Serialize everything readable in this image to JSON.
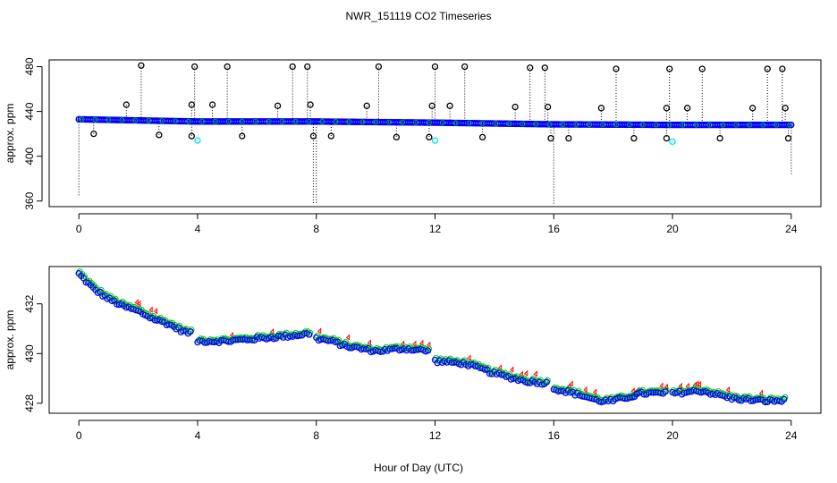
{
  "figure": {
    "title": "NWR_151119  CO2 Timeseries",
    "xlabel": "Hour of Day (UTC)"
  },
  "chart_data": [
    {
      "type": "scatter",
      "panel": "top",
      "ylabel": "approx. ppm",
      "xlim": [
        -1,
        25
      ],
      "ylim": [
        355,
        486
      ],
      "xticks": [
        0,
        4,
        8,
        12,
        16,
        20,
        24
      ],
      "yticks": [
        360,
        400,
        440,
        480
      ],
      "grid": false,
      "colors": {
        "baseline": "#0000ff",
        "spike_marker": "#000000",
        "cyan_marker": "#00e5e5",
        "green_marker": "#00cc00",
        "drop_line": "#000000"
      },
      "baseline": {
        "description_points": [
          [
            0,
            433
          ],
          [
            4,
            431
          ],
          [
            8,
            431
          ],
          [
            12,
            430
          ],
          [
            16,
            428.5
          ],
          [
            20,
            428
          ],
          [
            24,
            428
          ]
        ]
      },
      "spikes_high": [
        [
          1.6,
          446
        ],
        [
          2.1,
          481
        ],
        [
          3.8,
          446
        ],
        [
          3.9,
          480
        ],
        [
          4.5,
          446
        ],
        [
          5.0,
          480
        ],
        [
          6.7,
          445
        ],
        [
          7.2,
          480
        ],
        [
          7.7,
          480
        ],
        [
          7.8,
          446
        ],
        [
          9.7,
          445
        ],
        [
          10.1,
          480
        ],
        [
          11.9,
          445
        ],
        [
          12.0,
          480
        ],
        [
          12.5,
          445
        ],
        [
          13.0,
          480
        ],
        [
          14.7,
          444
        ],
        [
          15.2,
          479
        ],
        [
          15.7,
          479
        ],
        [
          15.8,
          444
        ],
        [
          17.6,
          443
        ],
        [
          18.1,
          478
        ],
        [
          19.8,
          443
        ],
        [
          19.9,
          478
        ],
        [
          20.5,
          443
        ],
        [
          21.0,
          478
        ],
        [
          22.7,
          443
        ],
        [
          23.2,
          478
        ],
        [
          23.7,
          478
        ],
        [
          23.8,
          443
        ]
      ],
      "spikes_low": [
        [
          0.5,
          420
        ],
        [
          2.7,
          419
        ],
        [
          3.8,
          418
        ],
        [
          5.5,
          418
        ],
        [
          7.9,
          418
        ],
        [
          8.5,
          418
        ],
        [
          10.7,
          417
        ],
        [
          11.8,
          417
        ],
        [
          13.6,
          417
        ],
        [
          15.9,
          416
        ],
        [
          16.5,
          416
        ],
        [
          18.7,
          416
        ],
        [
          19.8,
          416
        ],
        [
          21.6,
          416
        ],
        [
          23.9,
          416
        ]
      ],
      "cyan_points": [
        [
          4.0,
          414
        ],
        [
          12.0,
          414
        ],
        [
          20.0,
          413
        ]
      ],
      "drop_lines": [
        [
          0.0,
          433,
          364
        ],
        [
          7.9,
          431,
          358
        ],
        [
          8.0,
          431,
          358
        ],
        [
          16.0,
          428,
          356
        ],
        [
          24.0,
          428,
          383
        ]
      ]
    },
    {
      "type": "scatter",
      "panel": "bottom",
      "ylabel": "approx. ppm",
      "xlim": [
        -1,
        25
      ],
      "ylim": [
        427.6,
        433.5
      ],
      "xticks": [
        0,
        4,
        8,
        12,
        16,
        20,
        24
      ],
      "yticks": [
        428,
        430,
        432
      ],
      "grid": false,
      "colors": {
        "series_blue": "#0000ff",
        "series_green": "#00cc00",
        "series_red": "#ff0000"
      },
      "segments": [
        {
          "x": [
            0.0,
            3.8
          ],
          "y": [
            433.2,
            430.8
          ]
        },
        {
          "x": [
            4.0,
            7.8
          ],
          "y": [
            430.5,
            430.8
          ]
        },
        {
          "x": [
            8.0,
            11.8
          ],
          "y": [
            430.6,
            430.1
          ]
        },
        {
          "x": [
            12.0,
            15.8
          ],
          "y": [
            429.7,
            428.8
          ]
        },
        {
          "x": [
            16.0,
            19.8
          ],
          "y": [
            428.6,
            428.4
          ]
        },
        {
          "x": [
            20.0,
            23.8
          ],
          "y": [
            428.4,
            428.1
          ]
        }
      ],
      "anchor_points": [
        [
          0,
          433.2
        ],
        [
          0.5,
          432.6
        ],
        [
          1,
          432.2
        ],
        [
          1.5,
          431.9
        ],
        [
          2,
          431.7
        ],
        [
          2.5,
          431.4
        ],
        [
          3,
          431.2
        ],
        [
          3.5,
          430.9
        ],
        [
          3.8,
          430.8
        ],
        [
          4,
          430.5
        ],
        [
          5,
          430.5
        ],
        [
          6,
          430.6
        ],
        [
          7,
          430.7
        ],
        [
          7.8,
          430.8
        ],
        [
          8,
          430.6
        ],
        [
          8.5,
          430.5
        ],
        [
          9,
          430.3
        ],
        [
          10,
          430.1
        ],
        [
          11,
          430.2
        ],
        [
          11.8,
          430.1
        ],
        [
          12,
          429.7
        ],
        [
          13,
          429.6
        ],
        [
          14,
          429.2
        ],
        [
          15,
          428.9
        ],
        [
          15.8,
          428.8
        ],
        [
          16,
          428.6
        ],
        [
          17,
          428.3
        ],
        [
          17.5,
          428.1
        ],
        [
          18,
          428.1
        ],
        [
          19,
          428.4
        ],
        [
          19.8,
          428.4
        ],
        [
          20,
          428.4
        ],
        [
          21,
          428.5
        ],
        [
          22,
          428.2
        ],
        [
          23,
          428.1
        ],
        [
          23.8,
          428.1
        ]
      ]
    }
  ]
}
